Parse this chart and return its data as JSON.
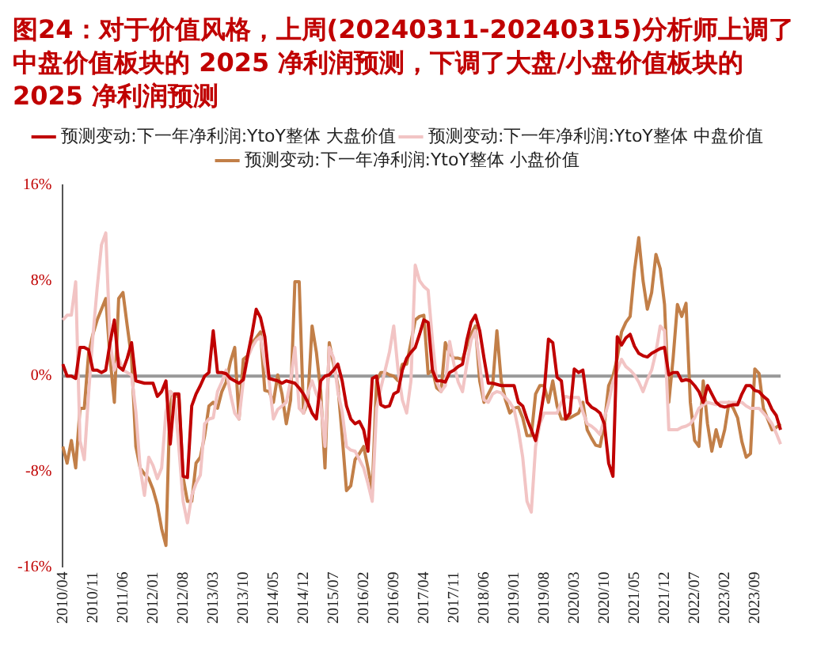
{
  "chart_data": {
    "type": "line",
    "title": "图24：对于价值风格，上周(20240311-20240315)分析师上调了中盘价值板块的 2025 净利润预测，下调了大盘/小盘价值板块的 2025 净利润预测",
    "categories": [
      "2010/04",
      null,
      null,
      null,
      null,
      null,
      null,
      "2010/11",
      null,
      null,
      null,
      null,
      null,
      null,
      "2011/06",
      null,
      null,
      null,
      null,
      null,
      null,
      "2012/01",
      null,
      null,
      null,
      null,
      null,
      null,
      "2012/08",
      null,
      null,
      null,
      null,
      null,
      null,
      "2013/03",
      null,
      null,
      null,
      null,
      null,
      null,
      "2013/10",
      null,
      null,
      null,
      null,
      null,
      null,
      "2014/05",
      null,
      null,
      null,
      null,
      null,
      null,
      "2014/12",
      null,
      null,
      null,
      null,
      null,
      null,
      "2015/07",
      null,
      null,
      null,
      null,
      null,
      null,
      "2016/02",
      null,
      null,
      null,
      null,
      null,
      null,
      "2016/09",
      null,
      null,
      null,
      null,
      null,
      null,
      "2017/04",
      null,
      null,
      null,
      null,
      null,
      null,
      "2017/11",
      null,
      null,
      null,
      null,
      null,
      null,
      "2018/06",
      null,
      null,
      null,
      null,
      null,
      null,
      "2019/01",
      null,
      null,
      null,
      null,
      null,
      null,
      "2019/08",
      null,
      null,
      null,
      null,
      null,
      null,
      "2020/03",
      null,
      null,
      null,
      null,
      null,
      null,
      "2020/10",
      null,
      null,
      null,
      null,
      null,
      null,
      "2021/05",
      null,
      null,
      null,
      null,
      null,
      null,
      "2021/12",
      null,
      null,
      null,
      null,
      null,
      null,
      "2022/07",
      null,
      null,
      null,
      null,
      null,
      null,
      "2023/02",
      null,
      null,
      null,
      null,
      null,
      null,
      "2023/09",
      null,
      null,
      null,
      null,
      null,
      null
    ],
    "series": [
      {
        "name": "预测变动:下一年净利润:YtoY整体 大盘价值",
        "color": "#c00000",
        "values": [
          1.0,
          0,
          0,
          -0.2,
          2.4,
          2.4,
          2.2,
          0.5,
          0.5,
          0.3,
          0.5,
          2.8,
          4.7,
          0.8,
          0.5,
          1.5,
          2.8,
          -0.4,
          -0.5,
          -0.6,
          -0.6,
          -0.6,
          -1.7,
          -1.3,
          -0.4,
          -5.7,
          -1.5,
          -1.5,
          -8.4,
          -8.5,
          -2.5,
          -1.5,
          -0.8,
          0,
          0.3,
          3.8,
          0.3,
          0.3,
          0.2,
          -0.2,
          -0.4,
          -0.6,
          -0.3,
          1.7,
          3.5,
          5.6,
          4.9,
          3.3,
          -0.2,
          -0.3,
          -0.4,
          -0.6,
          -0.4,
          -0.5,
          -0.6,
          -1.0,
          -1.5,
          -2.2,
          -3.1,
          -3.6,
          -0.4,
          0,
          0.1,
          0.5,
          1.0,
          -0.4,
          -2.5,
          -3.6,
          -4.0,
          -3.8,
          -4.5,
          -6.3,
          -0.2,
          0,
          -2.4,
          -2.6,
          -2.5,
          -1.5,
          -1.3,
          0.5,
          1.5,
          2.0,
          2.4,
          3.5,
          4.7,
          4.5,
          0.5,
          -0.4,
          -0.4,
          -0.5,
          0.3,
          0.5,
          0.8,
          1.0,
          3.0,
          4.5,
          5.1,
          3.8,
          1.5,
          -0.6,
          -0.6,
          -0.7,
          -0.8,
          -0.8,
          -0.8,
          -0.8,
          -2.2,
          -2.5,
          -3.6,
          -4.5,
          -5.4,
          -3.6,
          -1.3,
          3.1,
          2.8,
          -0.1,
          -0.4,
          -3.6,
          -3.1,
          0.6,
          0.3,
          0.5,
          -2.2,
          -2.6,
          -2.8,
          -3.1,
          -4.0,
          -7.3,
          -8.4,
          3.3,
          2.6,
          3.2,
          3.5,
          2.5,
          1.9,
          1.7,
          1.6,
          1.9,
          2.1,
          2.3,
          2.4,
          0.1,
          0.3,
          0.3,
          -0.4,
          -0.3,
          -0.4,
          -0.8,
          -1.3,
          -2.2,
          -0.8,
          -1.5,
          -2.2,
          -2.5,
          -2.6,
          -2.5,
          -2.4,
          -2.4,
          -1.5,
          -0.8,
          -0.8,
          -1.2,
          -1.3,
          -1.7,
          -2.0,
          -2.8,
          -3.3,
          -4.5
        ]
      },
      {
        "name": "预测变动:下一年净利润:YtoY整体 中盘价值",
        "color": "#f2c4c4",
        "values": [
          4.7,
          5.1,
          5.1,
          7.9,
          -5.4,
          -7.0,
          -1.5,
          3.3,
          7.4,
          11,
          12,
          2.8,
          0.5,
          1.5,
          0.5,
          0.3,
          0.1,
          -3,
          -7.7,
          -10,
          -6.8,
          -7.5,
          -8.6,
          -7.7,
          -3,
          -1.3,
          -1.7,
          -6,
          -10.5,
          -12.3,
          -10,
          -9,
          -8.3,
          -4,
          -3.6,
          -3.5,
          -1.3,
          -0.5,
          0.5,
          -1.5,
          -3.1,
          -3.6,
          -0.4,
          1.5,
          2.4,
          3,
          3.3,
          1,
          -0.4,
          -3.6,
          -2.8,
          -2.5,
          -2.2,
          -0.4,
          2.4,
          -2.7,
          -3.1,
          -1.5,
          -0.4,
          -1.5,
          -2.2,
          -5.9,
          2.4,
          1.5,
          -1.3,
          -3,
          -5.9,
          -6.2,
          -6.3,
          -7,
          -7.7,
          -9,
          -10.5,
          -2.7,
          -1,
          0.5,
          2,
          4.2,
          0.5,
          -2,
          -3.1,
          -0.4,
          9.3,
          8,
          7.5,
          7.2,
          3,
          -0.5,
          -1.3,
          -0.8,
          2.9,
          1,
          -0.5,
          -1.3,
          1,
          3,
          3.8,
          1,
          -2,
          -2.2,
          -1.5,
          -1.3,
          -1.4,
          -1.8,
          -2.2,
          -2.8,
          -4.5,
          -6.8,
          -10.5,
          -11.4,
          -5.9,
          -4,
          -3.1,
          -3.1,
          -3.1,
          -3.1,
          -2.2,
          -1.7,
          -1.8,
          -1.8,
          -1.8,
          -3,
          -4,
          -4.2,
          -4.5,
          -4.9,
          -3.5,
          -2.2,
          -0.5,
          0.5,
          1.4,
          0.8,
          0.5,
          0.1,
          -0.5,
          -1.3,
          -0.3,
          0.5,
          2,
          4.2,
          3.8,
          -4.5,
          -4.5,
          -4.5,
          -4.3,
          -4.2,
          -4,
          -3.5,
          -2.7,
          -2.4,
          -2.2,
          -2.3,
          -2.4,
          -2.2,
          -2.2,
          -2.2,
          -2.2,
          -2.2,
          -2.2,
          -2.5,
          -2.7,
          -2.7,
          -2.7,
          -3.1,
          -3.5,
          -4,
          -4.8,
          -5.7
        ]
      },
      {
        "name": "预测变动:下一年净利润:YtoY整体 小盘价值",
        "color": "#c27f48",
        "values": [
          -5.9,
          -7.3,
          -5.4,
          -7.7,
          -2.7,
          -2.7,
          1.9,
          3.5,
          4.7,
          5.6,
          6.5,
          1.5,
          -2.2,
          6.5,
          7,
          4.2,
          1.5,
          -5.9,
          -7.7,
          -8.2,
          -8.6,
          -9.5,
          -10.8,
          -12.8,
          -14.2,
          -1.3,
          -1.7,
          -1.7,
          -8.5,
          -10.5,
          -10.5,
          -7.3,
          -6.8,
          -5,
          -2.5,
          -2.2,
          -2.7,
          -1.3,
          -0.5,
          1.2,
          2.4,
          -3.6,
          1.4,
          1.7,
          2.8,
          3.2,
          3.7,
          -1.2,
          -1.3,
          -2.2,
          0.1,
          -1.5,
          -4,
          -2,
          7.9,
          7.9,
          -3.1,
          -2.2,
          4.2,
          2,
          -1.3,
          -7.7,
          2.8,
          1,
          -0.8,
          -5,
          -9.6,
          -9.2,
          -7,
          -6.5,
          -5.9,
          -7.7,
          -9.6,
          -0.4,
          0.3,
          0.3,
          0.1,
          0,
          -0.4,
          1,
          1,
          2.8,
          4.7,
          5,
          5.1,
          0.2,
          0.5,
          -1,
          -1.3,
          2.8,
          1.9,
          1.5,
          1.5,
          1.4,
          2.5,
          3.5,
          4.2,
          -0.4,
          -2.2,
          -1.5,
          -0.8,
          3.8,
          -0.4,
          -2,
          -3.1,
          -2.7,
          -2.6,
          -3.5,
          -5,
          -5,
          -1.5,
          -0.8,
          -0.8,
          -2.2,
          -0.4,
          -2.5,
          -3.6,
          -3.6,
          -3.5,
          -3.3,
          -3.1,
          -2.2,
          -4.5,
          -5.2,
          -5.8,
          -5.9,
          -4,
          -0.8,
          0,
          1.5,
          3.7,
          4.5,
          5,
          8.8,
          11.6,
          8,
          5.6,
          7,
          10.2,
          9,
          6,
          -2.2,
          1.5,
          6,
          5,
          6.1,
          -2.2,
          -5.4,
          -5.9,
          -0.4,
          -4,
          -6.3,
          -4.5,
          -5.9,
          -4.5,
          -2.2,
          -2.7,
          -3.5,
          -5.5,
          -6.8,
          -6.5,
          0.6,
          0.2,
          -2.7,
          -3.6,
          -4.5,
          -4.3,
          -4
        ]
      }
    ],
    "ylim": [
      -16,
      16
    ],
    "yticks": [
      {
        "value": 16,
        "label": "16%"
      },
      {
        "value": 8,
        "label": "8%"
      },
      {
        "value": 0,
        "label": "0%"
      },
      {
        "value": -8,
        "label": "-8%"
      },
      {
        "value": -16,
        "label": "-16%"
      }
    ],
    "grid": false,
    "ref_lines": [
      {
        "axis": "y",
        "value": 0,
        "color": "#999999"
      }
    ],
    "legend": "top",
    "marker": "none",
    "line_style": "solid"
  }
}
